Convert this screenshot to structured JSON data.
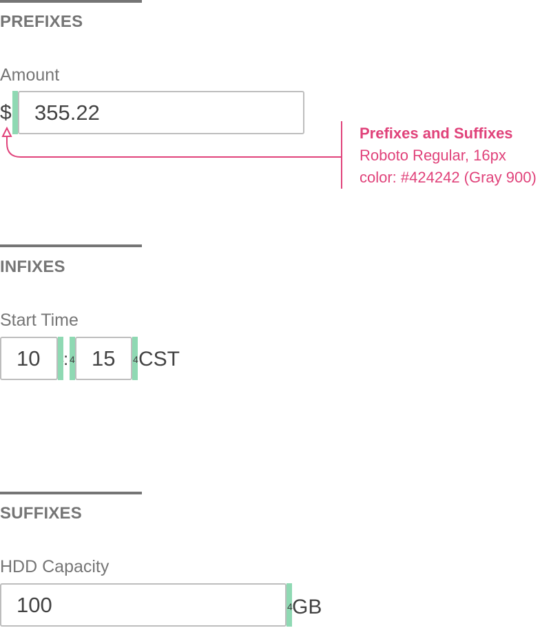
{
  "sections": {
    "prefixes": {
      "title": "PREFIXES",
      "label": "Amount",
      "prefix": "$",
      "value": "355.22",
      "spacing": "4"
    },
    "infixes": {
      "title": "INFIXES",
      "label": "Start Time",
      "hours": "10",
      "separator": ":",
      "minutes": "15",
      "suffix": "CST",
      "spacing": "4"
    },
    "suffixes": {
      "title": "SUFFIXES",
      "label": "HDD Capacity",
      "value": "100",
      "suffix": "GB",
      "spacing": "4"
    }
  },
  "annotation": {
    "title": "Prefixes and Suffixes",
    "line1": "Roboto Regular, 16px",
    "line2": "color: #424242 (Gray 900)",
    "color": "#e0427a"
  },
  "colors": {
    "text": "#424242",
    "muted": "#757575",
    "spacer": "#8fd9b3",
    "border": "#bdbdbd"
  }
}
